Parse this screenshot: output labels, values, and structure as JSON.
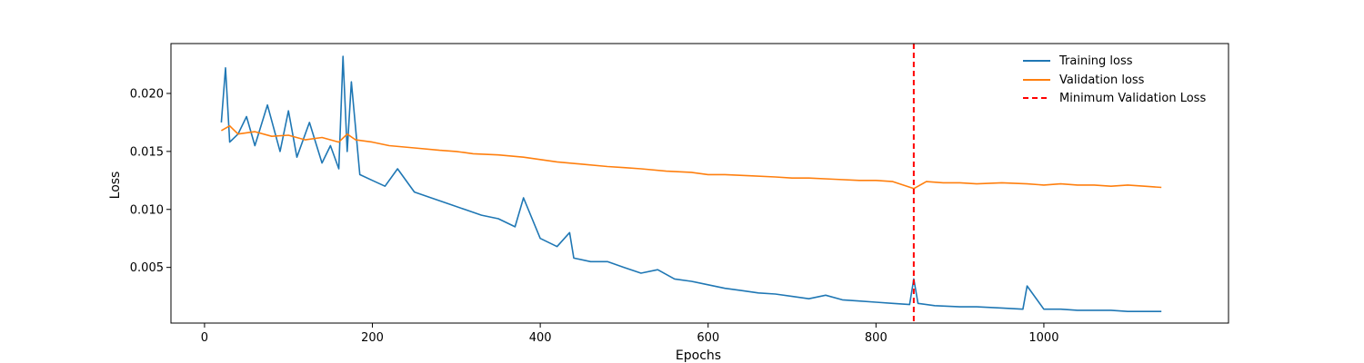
{
  "chart_data": {
    "type": "line",
    "title": "",
    "xlabel": "Epochs",
    "ylabel": "Loss",
    "xlim": [
      -40,
      1220
    ],
    "ylim": [
      0.0002,
      0.0243
    ],
    "x_ticks": [
      0,
      200,
      400,
      600,
      800,
      1000
    ],
    "x_tick_labels": [
      "0",
      "200",
      "400",
      "600",
      "800",
      "1000"
    ],
    "y_ticks": [
      0.005,
      0.01,
      0.015,
      0.02
    ],
    "y_tick_labels": [
      "0.005",
      "0.010",
      "0.015",
      "0.020"
    ],
    "grid": false,
    "legend_position": "top-right",
    "series": [
      {
        "name": "Training loss",
        "color": "#1f77b4",
        "x": [
          20,
          25,
          30,
          40,
          50,
          60,
          75,
          90,
          100,
          110,
          125,
          140,
          150,
          160,
          165,
          170,
          175,
          185,
          200,
          215,
          230,
          250,
          270,
          290,
          310,
          330,
          350,
          370,
          380,
          400,
          420,
          435,
          440,
          460,
          480,
          500,
          520,
          540,
          560,
          580,
          600,
          620,
          640,
          660,
          680,
          700,
          720,
          740,
          760,
          780,
          800,
          820,
          840,
          845,
          850,
          870,
          900,
          920,
          950,
          975,
          980,
          1000,
          1020,
          1040,
          1060,
          1080,
          1100,
          1120,
          1140
        ],
        "y": [
          0.0175,
          0.0222,
          0.0158,
          0.0165,
          0.018,
          0.0155,
          0.019,
          0.015,
          0.0185,
          0.0145,
          0.0175,
          0.014,
          0.0155,
          0.0135,
          0.0232,
          0.015,
          0.021,
          0.013,
          0.0125,
          0.012,
          0.0135,
          0.0115,
          0.011,
          0.0105,
          0.01,
          0.0095,
          0.0092,
          0.0085,
          0.011,
          0.0075,
          0.0068,
          0.008,
          0.0058,
          0.0055,
          0.0055,
          0.005,
          0.0045,
          0.0048,
          0.004,
          0.0038,
          0.0035,
          0.0032,
          0.003,
          0.0028,
          0.0027,
          0.0025,
          0.0023,
          0.0026,
          0.0022,
          0.0021,
          0.002,
          0.0019,
          0.0018,
          0.004,
          0.0019,
          0.0017,
          0.0016,
          0.0016,
          0.0015,
          0.0014,
          0.0034,
          0.0014,
          0.0014,
          0.0013,
          0.0013,
          0.0013,
          0.0012,
          0.0012,
          0.0012
        ]
      },
      {
        "name": "Validation loss",
        "color": "#ff7f0e",
        "x": [
          20,
          30,
          40,
          60,
          80,
          100,
          120,
          140,
          160,
          170,
          180,
          200,
          220,
          250,
          280,
          300,
          320,
          350,
          380,
          400,
          420,
          450,
          480,
          500,
          520,
          550,
          580,
          600,
          620,
          650,
          680,
          700,
          720,
          750,
          780,
          800,
          820,
          845,
          860,
          880,
          900,
          920,
          950,
          980,
          1000,
          1020,
          1040,
          1060,
          1080,
          1100,
          1120,
          1140
        ],
        "y": [
          0.0168,
          0.0172,
          0.0165,
          0.0167,
          0.0163,
          0.0164,
          0.016,
          0.0162,
          0.0158,
          0.0165,
          0.016,
          0.0158,
          0.0155,
          0.0153,
          0.0151,
          0.015,
          0.0148,
          0.0147,
          0.0145,
          0.0143,
          0.0141,
          0.0139,
          0.0137,
          0.0136,
          0.0135,
          0.0133,
          0.0132,
          0.013,
          0.013,
          0.0129,
          0.0128,
          0.0127,
          0.0127,
          0.0126,
          0.0125,
          0.0125,
          0.0124,
          0.0118,
          0.0124,
          0.0123,
          0.0123,
          0.0122,
          0.0123,
          0.0122,
          0.0121,
          0.0122,
          0.0121,
          0.0121,
          0.012,
          0.0121,
          0.012,
          0.0119
        ]
      }
    ],
    "vline": {
      "name": "Minimum Validation Loss",
      "x": 845,
      "color": "#ff0000"
    }
  }
}
